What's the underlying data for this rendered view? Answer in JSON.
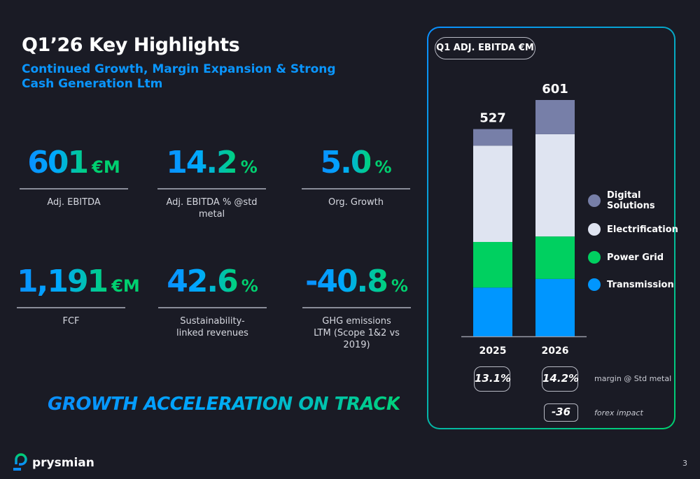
{
  "header": {
    "title": "Q1’26 Key Highlights",
    "subtitle": "Continued Growth, Margin Expansion & Strong Cash Generation Ltm"
  },
  "kpis": [
    {
      "value": "601",
      "unit": "€M",
      "label": "Adj. EBITDA"
    },
    {
      "value": "14.2",
      "unit": "%",
      "label": "Adj. EBITDA % @std metal"
    },
    {
      "value": "5.0",
      "unit": "%",
      "label": "Org. Growth"
    },
    {
      "value": "1,191",
      "unit": "€M",
      "label": "FCF"
    },
    {
      "value": "42.6",
      "unit": "%",
      "label": "Sustainability-linked revenues"
    },
    {
      "value": "-40.8",
      "unit": "%",
      "label": "GHG emissions LTM (Scope 1&2 vs 2019)"
    }
  ],
  "tagline": "GROWTH ACCELERATION ON TRACK",
  "chart_data": {
    "type": "bar",
    "stacked": true,
    "title": "Q1 ADJ. EBITDA €M",
    "categories": [
      "2025",
      "2026"
    ],
    "totals": [
      527,
      601
    ],
    "series": [
      {
        "name": "Transmission",
        "color": "#0096ff",
        "values": [
          124,
          146
        ]
      },
      {
        "name": "Power Grid",
        "color": "#00d060",
        "values": [
          116,
          108
        ]
      },
      {
        "name": "Electrification",
        "color": "#dfe4f1",
        "values": [
          245,
          260
        ]
      },
      {
        "name": "Digital Solutions",
        "color": "#777fa8",
        "values": [
          42,
          87
        ]
      }
    ],
    "legend": "right",
    "grid": false,
    "margins": {
      "label": "margin @ Std metal",
      "values": [
        "13.1%",
        "14.2%"
      ]
    },
    "forex": {
      "label": "forex impact",
      "value": "-36"
    }
  },
  "footer": {
    "logo_text": "prysmian",
    "page_number": "3"
  },
  "colors": {
    "background": "#1a1b25",
    "accent_blue": "#0a96ff",
    "accent_green": "#00d070"
  }
}
